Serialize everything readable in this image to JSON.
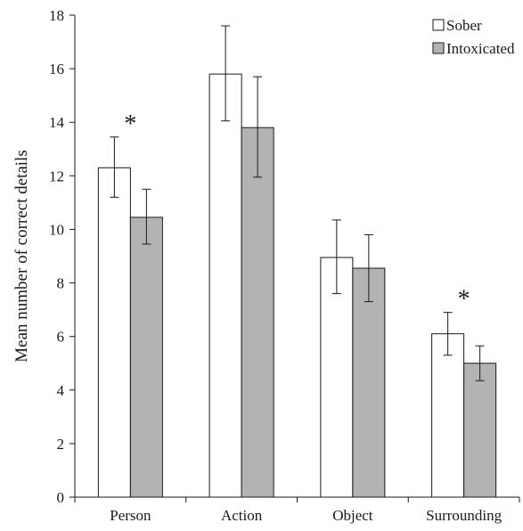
{
  "chart_data": {
    "type": "bar",
    "title": "",
    "xlabel": "",
    "ylabel": "Mean number of correct details",
    "ylim": [
      0,
      18
    ],
    "yticks": [
      0,
      2,
      4,
      6,
      8,
      10,
      12,
      14,
      16,
      18
    ],
    "categories": [
      "Person",
      "Action",
      "Object",
      "Surrounding"
    ],
    "series": [
      {
        "name": "Sober",
        "color": "#ffffff",
        "values": [
          12.3,
          15.8,
          8.95,
          6.1
        ],
        "error_low": [
          11.2,
          14.05,
          7.6,
          5.3
        ],
        "error_high": [
          13.45,
          17.6,
          10.35,
          6.9
        ]
      },
      {
        "name": "Intoxicated",
        "color": "#b3b3b3",
        "values": [
          10.45,
          13.8,
          8.55,
          5.0
        ],
        "error_low": [
          9.45,
          11.95,
          7.3,
          4.35
        ],
        "error_high": [
          11.5,
          15.7,
          9.8,
          5.65
        ]
      }
    ],
    "annotations": [
      {
        "text": "*",
        "category": "Person"
      },
      {
        "text": "*",
        "category": "Surrounding"
      }
    ],
    "legend_position": "top-right",
    "grid": false
  }
}
